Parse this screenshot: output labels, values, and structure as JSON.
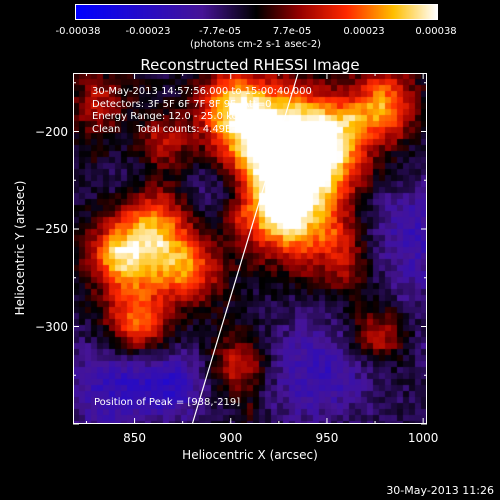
{
  "colorbar": {
    "ticks": [
      "-0.00038",
      "-0.00023",
      "-7.7e-05",
      "7.7e-05",
      "0.00023",
      "0.00038"
    ],
    "units": "(photons cm-2 s-1 asec-2)"
  },
  "chart_data": {
    "type": "heatmap",
    "title": "Reconstructed RHESSI Image",
    "xlabel": "Heliocentric X (arcsec)",
    "ylabel": "Heliocentric Y (arcsec)",
    "xlim": [
      818,
      1002
    ],
    "ylim": [
      -350,
      -170
    ],
    "xticks": [
      850,
      900,
      950,
      1000
    ],
    "yticks": [
      -200,
      -250,
      -300
    ],
    "vlim": [
      -0.00038,
      0.00038
    ],
    "annotations": [
      "30-May-2013 14:57:56.000 to 15:00:40.000",
      "Detectors: 3F 5F 6F 7F 8F 9F  Att=0",
      "Energy Range: 12.0 - 25.0 keV",
      "Clean     Total counts: 4.49E+03"
    ],
    "peak_label": "Position of Peak = [938,-219]",
    "peak": [
      938,
      -219
    ],
    "limb_line": [
      [
        880,
        -350
      ],
      [
        935,
        -170
      ]
    ]
  },
  "footer": "30-May-2013 11:26",
  "colors": {
    "background": "#000000",
    "foreground": "#ffffff"
  }
}
